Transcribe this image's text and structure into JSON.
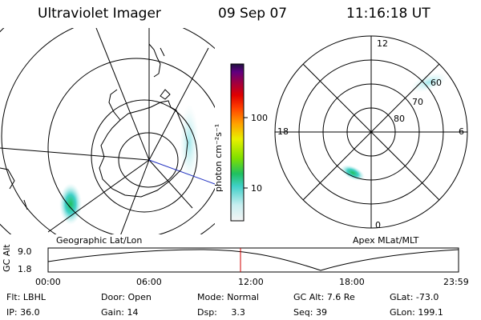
{
  "header": {
    "instrument": "Ultraviolet Imager",
    "date": "09 Sep 07",
    "time": "11:16:18 UT"
  },
  "colorbar": {
    "label": "photon cm⁻²s⁻¹",
    "ticks": [
      "100",
      "10"
    ],
    "scale": "log",
    "colors": [
      "#f0f0f0",
      "#c8f0f0",
      "#40d0c8",
      "#20c060",
      "#80e000",
      "#e8f000",
      "#ffa000",
      "#ff4000",
      "#e00000",
      "#a00040",
      "#600080",
      "#201040"
    ]
  },
  "left_map": {
    "label": "Geographic Lat/Lon"
  },
  "right_map": {
    "label": "Apex  MLat/MLT",
    "mlt_labels": [
      "12",
      "18",
      "6",
      "0"
    ],
    "lat_labels": [
      "60",
      "70",
      "80"
    ]
  },
  "altitude_plot": {
    "ylabel": "GC Alt",
    "yticks": [
      "9.0",
      "1.8"
    ],
    "xticks": [
      "00:00",
      "06:00",
      "12:00",
      "18:00",
      "23:59"
    ],
    "marker_time": "11:16",
    "trace_color": "#000000",
    "marker_color": "#d00000"
  },
  "status": {
    "row1": [
      {
        "label": "Flt:",
        "value": "LBHL"
      },
      {
        "label": "Door:",
        "value": "Open"
      },
      {
        "label": "Mode:",
        "value": "Normal"
      },
      {
        "label": "GC Alt:",
        "value": "7.6 Re"
      },
      {
        "label": "GLat:",
        "value": "-73.0"
      }
    ],
    "row2": [
      {
        "label": "IP:",
        "value": "36.0"
      },
      {
        "label": "Gain:",
        "value": "14"
      },
      {
        "label": "Dsp:",
        "value": "3.3"
      },
      {
        "label": "Seq:",
        "value": "39"
      },
      {
        "label": "GLon:",
        "value": "199.1"
      }
    ]
  }
}
